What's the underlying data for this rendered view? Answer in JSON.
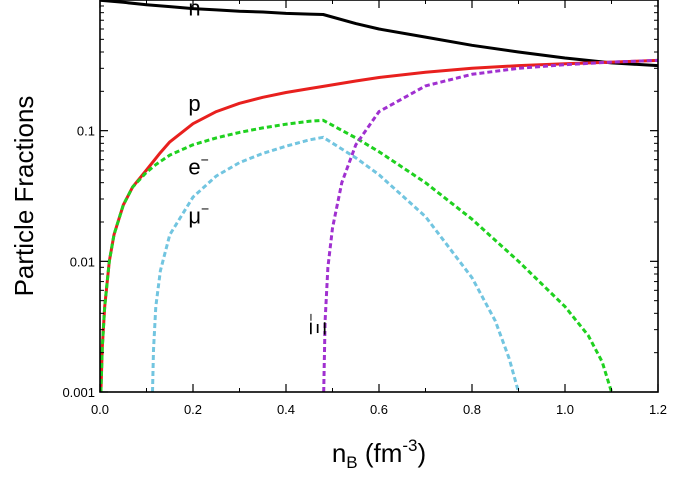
{
  "chart_data": {
    "type": "line",
    "title": "",
    "xlabel": {
      "main": "n",
      "sub": "B",
      "rest": " (fm",
      "sup": "-3",
      "close": ")"
    },
    "ylabel": "Particle Fractions",
    "xscale": "linear",
    "yscale": "log",
    "xlim": [
      0.0,
      1.2
    ],
    "ylim": [
      0.001,
      1.0
    ],
    "x_ticks": [
      {
        "value": 0.0,
        "label": "0.0"
      },
      {
        "value": 0.2,
        "label": "0.2"
      },
      {
        "value": 0.4,
        "label": "0.4"
      },
      {
        "value": 0.6,
        "label": "0.6"
      },
      {
        "value": 0.8,
        "label": "0.8"
      },
      {
        "value": 1.0,
        "label": "1.0"
      },
      {
        "value": 1.2,
        "label": "1.2"
      }
    ],
    "y_ticks": [
      {
        "value": 0.001,
        "label": "0.001"
      },
      {
        "value": 0.01,
        "label": "0.01"
      },
      {
        "value": 0.1,
        "label": "0.1"
      }
    ],
    "grid": false,
    "legend": "none",
    "series": [
      {
        "name": "n",
        "color": "#000000",
        "dash": "solid",
        "label_text": "n",
        "label_sup": "",
        "label_at": [
          0.19,
          0.76
        ],
        "x": [
          0.0,
          0.05,
          0.1,
          0.15,
          0.2,
          0.25,
          0.3,
          0.35,
          0.4,
          0.45,
          0.48,
          0.55,
          0.6,
          0.7,
          0.8,
          0.9,
          1.0,
          1.1,
          1.2
        ],
        "y": [
          0.995,
          0.96,
          0.92,
          0.89,
          0.86,
          0.84,
          0.82,
          0.81,
          0.79,
          0.78,
          0.775,
          0.66,
          0.6,
          0.52,
          0.45,
          0.4,
          0.36,
          0.33,
          0.315
        ]
      },
      {
        "name": "p",
        "color": "#e8201e",
        "dash": "solid",
        "label_text": "p",
        "label_sup": "",
        "label_at": [
          0.19,
          0.142
        ],
        "x": [
          0.002,
          0.005,
          0.01,
          0.02,
          0.03,
          0.05,
          0.07,
          0.1,
          0.13,
          0.15,
          0.2,
          0.25,
          0.3,
          0.35,
          0.4,
          0.45,
          0.48,
          0.55,
          0.6,
          0.7,
          0.8,
          0.9,
          1.0,
          1.1,
          1.2
        ],
        "y": [
          0.001,
          0.0022,
          0.0045,
          0.01,
          0.016,
          0.027,
          0.037,
          0.05,
          0.068,
          0.082,
          0.113,
          0.14,
          0.162,
          0.18,
          0.196,
          0.21,
          0.218,
          0.24,
          0.255,
          0.28,
          0.3,
          0.315,
          0.325,
          0.335,
          0.345
        ]
      },
      {
        "name": "e",
        "color": "#1fd11f",
        "dash": "dashed",
        "label_text": "e",
        "label_sup": "−",
        "label_at": [
          0.19,
          0.046
        ],
        "x": [
          0.002,
          0.005,
          0.01,
          0.02,
          0.03,
          0.05,
          0.07,
          0.1,
          0.12,
          0.15,
          0.2,
          0.25,
          0.3,
          0.35,
          0.4,
          0.45,
          0.48,
          0.55,
          0.6,
          0.7,
          0.8,
          0.9,
          1.0,
          1.05,
          1.08,
          1.1
        ],
        "y": [
          0.001,
          0.0022,
          0.0045,
          0.01,
          0.016,
          0.027,
          0.037,
          0.048,
          0.055,
          0.065,
          0.078,
          0.088,
          0.097,
          0.105,
          0.112,
          0.118,
          0.12,
          0.088,
          0.069,
          0.04,
          0.021,
          0.01,
          0.0045,
          0.0027,
          0.0017,
          0.001
        ]
      },
      {
        "name": "μ",
        "color": "#72c5e0",
        "dash": "dashed",
        "label_text": "μ",
        "label_sup": "−",
        "label_at": [
          0.19,
          0.0195
        ],
        "x": [
          0.113,
          0.115,
          0.12,
          0.13,
          0.15,
          0.2,
          0.25,
          0.3,
          0.35,
          0.4,
          0.45,
          0.48,
          0.55,
          0.6,
          0.7,
          0.8,
          0.85,
          0.88,
          0.9
        ],
        "y": [
          0.001,
          0.0021,
          0.0045,
          0.0085,
          0.016,
          0.031,
          0.045,
          0.057,
          0.067,
          0.076,
          0.085,
          0.089,
          0.062,
          0.046,
          0.022,
          0.0075,
          0.0035,
          0.0018,
          0.001
        ]
      },
      {
        "name": "Ξ",
        "color": "#a030d0",
        "dash": "dashed",
        "label_text": "Ξ",
        "label_sup": "−",
        "label_at": [
          0.485,
          0.0027
        ],
        "label_rotate": -90,
        "x": [
          0.481,
          0.484,
          0.49,
          0.5,
          0.52,
          0.55,
          0.6,
          0.7,
          0.8,
          0.9,
          1.0,
          1.1,
          1.2
        ],
        "y": [
          0.001,
          0.0035,
          0.009,
          0.018,
          0.04,
          0.078,
          0.14,
          0.22,
          0.27,
          0.3,
          0.32,
          0.335,
          0.345
        ]
      }
    ]
  }
}
